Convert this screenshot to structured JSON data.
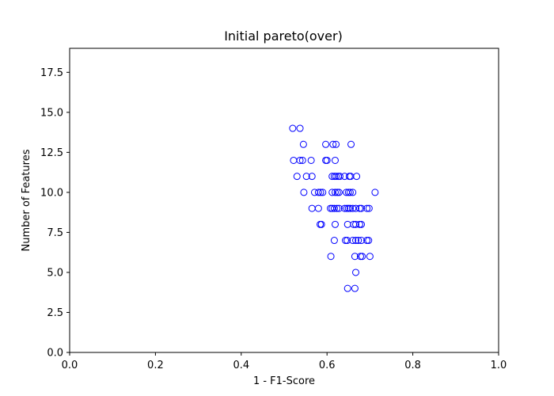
{
  "chart_data": {
    "type": "scatter",
    "title": "Initial pareto(over)",
    "xlabel": "1 - F1-Score",
    "ylabel": "Number of Features",
    "xlim": [
      0.0,
      1.0
    ],
    "ylim": [
      0.0,
      19.0
    ],
    "xticks": [
      0.0,
      0.2,
      0.4,
      0.6,
      0.8,
      1.0
    ],
    "xtick_labels": [
      "0.0",
      "0.2",
      "0.4",
      "0.6",
      "0.8",
      "1.0"
    ],
    "yticks": [
      0.0,
      2.5,
      5.0,
      7.5,
      10.0,
      12.5,
      15.0,
      17.5
    ],
    "ytick_labels": [
      "0.0",
      "2.5",
      "5.0",
      "7.5",
      "10.0",
      "12.5",
      "15.0",
      "17.5"
    ],
    "grid": false,
    "marker": "hollow-circle",
    "marker_color": "#0000ff",
    "series": [
      {
        "name": "",
        "points": [
          [
            0.52,
            14
          ],
          [
            0.537,
            14
          ],
          [
            0.545,
            13
          ],
          [
            0.597,
            13
          ],
          [
            0.614,
            13
          ],
          [
            0.621,
            13
          ],
          [
            0.656,
            13
          ],
          [
            0.522,
            12
          ],
          [
            0.537,
            12
          ],
          [
            0.543,
            12
          ],
          [
            0.563,
            12
          ],
          [
            0.597,
            12
          ],
          [
            0.6,
            12
          ],
          [
            0.619,
            12
          ],
          [
            0.53,
            11
          ],
          [
            0.552,
            11
          ],
          [
            0.565,
            11
          ],
          [
            0.612,
            11
          ],
          [
            0.617,
            11
          ],
          [
            0.621,
            11
          ],
          [
            0.626,
            11
          ],
          [
            0.63,
            11
          ],
          [
            0.641,
            11
          ],
          [
            0.652,
            11
          ],
          [
            0.655,
            11
          ],
          [
            0.669,
            11
          ],
          [
            0.546,
            10
          ],
          [
            0.571,
            10
          ],
          [
            0.58,
            10
          ],
          [
            0.585,
            10
          ],
          [
            0.59,
            10
          ],
          [
            0.612,
            10
          ],
          [
            0.619,
            10
          ],
          [
            0.624,
            10
          ],
          [
            0.628,
            10
          ],
          [
            0.645,
            10
          ],
          [
            0.65,
            10
          ],
          [
            0.654,
            10
          ],
          [
            0.66,
            10
          ],
          [
            0.712,
            10
          ],
          [
            0.565,
            9
          ],
          [
            0.58,
            9
          ],
          [
            0.608,
            9
          ],
          [
            0.612,
            9
          ],
          [
            0.617,
            9
          ],
          [
            0.623,
            9
          ],
          [
            0.628,
            9
          ],
          [
            0.641,
            9
          ],
          [
            0.646,
            9
          ],
          [
            0.65,
            9
          ],
          [
            0.654,
            9
          ],
          [
            0.66,
            9
          ],
          [
            0.667,
            9
          ],
          [
            0.676,
            9
          ],
          [
            0.68,
            9
          ],
          [
            0.693,
            9
          ],
          [
            0.698,
            9
          ],
          [
            0.584,
            8
          ],
          [
            0.587,
            8
          ],
          [
            0.619,
            8
          ],
          [
            0.648,
            8
          ],
          [
            0.662,
            8
          ],
          [
            0.667,
            8
          ],
          [
            0.676,
            8
          ],
          [
            0.68,
            8
          ],
          [
            0.617,
            7
          ],
          [
            0.643,
            7
          ],
          [
            0.647,
            7
          ],
          [
            0.66,
            7
          ],
          [
            0.667,
            7
          ],
          [
            0.673,
            7
          ],
          [
            0.68,
            7
          ],
          [
            0.693,
            7
          ],
          [
            0.697,
            7
          ],
          [
            0.609,
            6
          ],
          [
            0.665,
            6
          ],
          [
            0.678,
            6
          ],
          [
            0.682,
            6
          ],
          [
            0.7,
            6
          ],
          [
            0.667,
            5
          ],
          [
            0.648,
            4
          ],
          [
            0.665,
            4
          ]
        ]
      }
    ]
  }
}
